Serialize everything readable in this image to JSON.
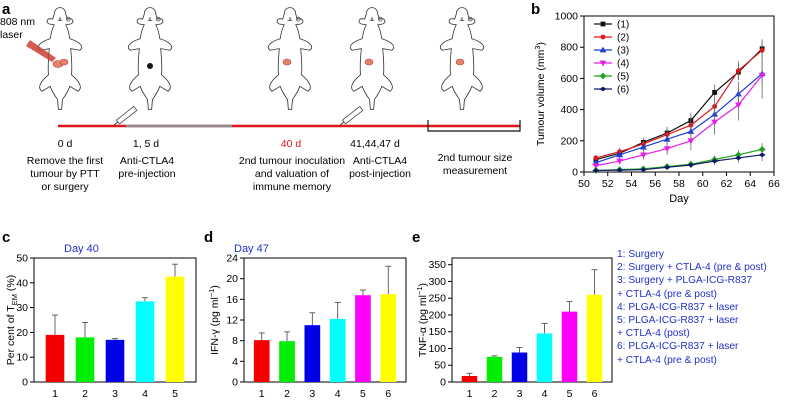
{
  "panels": {
    "a": "a",
    "b": "b",
    "c": "c",
    "d": "d",
    "e": "e"
  },
  "timeline": {
    "laser_label": "808 nm\nlaser",
    "time_points": [
      "0 d",
      "1, 5 d",
      "40 d",
      "41,44,47 d"
    ],
    "captions": [
      "Remove the first\ntumour by PTT\nor surgery",
      "Anti-CTLA4\npre-injection",
      "2nd tumour inoculation\nand valuation of\nimmune memory",
      "Anti-CTLA4\npost-injection",
      "2nd tumour size\nmeasurement"
    ],
    "colors": {
      "bar": "#e0151b",
      "grey": "#8c8c8c",
      "tumour": "#e8806a",
      "accent": "#e0151b"
    }
  },
  "chart_data": [
    {
      "type": "line",
      "panel": "b",
      "xlabel": "Day",
      "ylabel": "Tumour volume (mm3)",
      "xlim": [
        50,
        66
      ],
      "ylim": [
        0,
        1000
      ],
      "xticks": [
        50,
        52,
        54,
        56,
        58,
        60,
        62,
        64,
        66
      ],
      "yticks": [
        0,
        200,
        400,
        600,
        800,
        1000
      ],
      "legend_position": "top-left",
      "x": [
        51,
        53,
        55,
        57,
        59,
        61,
        63,
        65
      ],
      "series": [
        {
          "name": "(1)",
          "color": "#111111",
          "marker": "square",
          "values": [
            80,
            120,
            190,
            250,
            330,
            510,
            640,
            790
          ],
          "err": [
            20,
            25,
            30,
            40,
            50,
            50,
            50,
            60
          ]
        },
        {
          "name": "(2)",
          "color": "#e0151b",
          "marker": "circle",
          "values": [
            90,
            130,
            180,
            240,
            300,
            420,
            650,
            780
          ],
          "err": [
            20,
            25,
            30,
            40,
            50,
            60,
            60,
            60
          ]
        },
        {
          "name": "(3)",
          "color": "#1f3fd6",
          "marker": "triangle",
          "values": [
            60,
            110,
            160,
            210,
            260,
            370,
            500,
            630
          ],
          "err": [
            20,
            25,
            30,
            40,
            60,
            70,
            80,
            80
          ]
        },
        {
          "name": "(4)",
          "color": "#e81ee8",
          "marker": "triangle-down",
          "values": [
            40,
            70,
            110,
            150,
            200,
            320,
            430,
            620
          ],
          "err": [
            20,
            20,
            30,
            40,
            60,
            80,
            100,
            150
          ]
        },
        {
          "name": "(5)",
          "color": "#1da51d",
          "marker": "diamond",
          "values": [
            10,
            15,
            20,
            35,
            50,
            80,
            110,
            145
          ],
          "err": [
            5,
            5,
            10,
            15,
            20,
            25,
            30,
            40
          ]
        },
        {
          "name": "(6)",
          "color": "#111a66",
          "marker": "star",
          "values": [
            10,
            12,
            15,
            30,
            45,
            70,
            90,
            110
          ],
          "err": [
            5,
            5,
            10,
            15,
            20,
            25,
            30,
            40
          ]
        }
      ]
    },
    {
      "type": "bar",
      "panel": "c",
      "title": "Day 40",
      "ylabel": "Per cent of TEM (%)",
      "categories": [
        "1",
        "2",
        "3",
        "4",
        "5"
      ],
      "values": [
        19,
        18,
        17,
        32.5,
        42.5
      ],
      "err": [
        8,
        6,
        0.5,
        1.5,
        5
      ],
      "ylim": [
        0,
        50
      ],
      "yticks": [
        0,
        10,
        20,
        30,
        40,
        50
      ],
      "colors": [
        "#f40000",
        "#00ee00",
        "#0000e6",
        "#00ffff",
        "#ffff00"
      ]
    },
    {
      "type": "bar",
      "panel": "d",
      "title": "Day 47",
      "ylabel": "IFN-γ (pg ml−1)",
      "categories": [
        "1",
        "2",
        "3",
        "4",
        "5",
        "6"
      ],
      "values": [
        8.1,
        7.9,
        11,
        12.2,
        16.8,
        17
      ],
      "err": [
        1.4,
        1.8,
        2.4,
        3.2,
        1,
        5.4
      ],
      "ylim": [
        0,
        24
      ],
      "yticks": [
        0,
        4,
        8,
        12,
        16,
        20,
        24
      ],
      "colors": [
        "#f40000",
        "#00ee00",
        "#0000e6",
        "#00ffff",
        "#ff00ff",
        "#ffff00"
      ]
    },
    {
      "type": "bar",
      "panel": "e",
      "ylabel": "TNF-α (pg ml−1)",
      "categories": [
        "1",
        "2",
        "3",
        "4",
        "5",
        "6"
      ],
      "values": [
        18,
        75,
        88,
        145,
        210,
        260
      ],
      "err": [
        8,
        3,
        15,
        30,
        30,
        75
      ],
      "ylim": [
        0,
        370
      ],
      "yticks": [
        0,
        50,
        100,
        150,
        200,
        250,
        300,
        350
      ],
      "colors": [
        "#f40000",
        "#00ee00",
        "#0000e6",
        "#00ffff",
        "#ff00ff",
        "#ffff00"
      ]
    }
  ],
  "legend_e": [
    "1:  Surgery",
    "2:  Surgery + CTLA-4 (pre & post)",
    "3:  Surgery + PLGA-ICG-R837",
    "      + CTLA-4 (pre & post)",
    "4:  PLGA-ICG-R837 + laser",
    "5:  PLGA-ICG-R837 + laser",
    "      + CTLA-4 (post)",
    "6:  PLGA-ICG-R837 + laser",
    "      + CTLA-4 (pre & post)"
  ]
}
